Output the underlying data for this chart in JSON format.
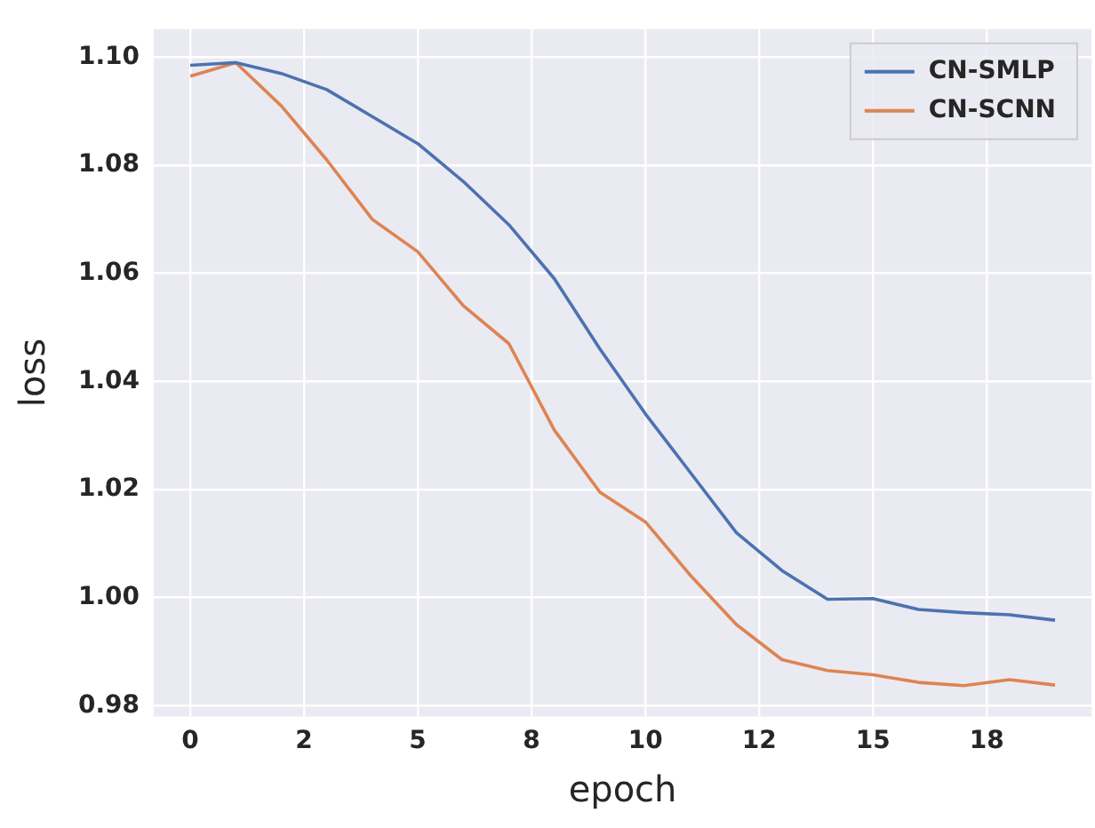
{
  "chart_data": {
    "type": "line",
    "xlabel": "epoch",
    "ylabel": "loss",
    "x": [
      0,
      1,
      2,
      3,
      4,
      5,
      6,
      7,
      8,
      9,
      10,
      11,
      12,
      13,
      14,
      15,
      16,
      17,
      18,
      19
    ],
    "series": [
      {
        "name": "CN-SMLP",
        "color": "#4c72b0",
        "values": [
          1.0985,
          1.099,
          1.097,
          1.094,
          1.089,
          1.084,
          1.077,
          1.069,
          1.059,
          1.046,
          1.034,
          1.023,
          1.012,
          1.005,
          0.9997,
          0.9998,
          0.9978,
          0.9972,
          0.9968,
          0.9958
        ]
      },
      {
        "name": "CN-SCNN",
        "color": "#dd8452",
        "values": [
          1.0965,
          1.099,
          1.091,
          1.081,
          1.07,
          1.064,
          1.054,
          1.047,
          1.031,
          1.0195,
          1.014,
          1.004,
          0.995,
          0.9885,
          0.9865,
          0.9857,
          0.9843,
          0.9837,
          0.9848,
          0.9838
        ]
      }
    ],
    "xlim": [
      -0.8,
      19.8
    ],
    "xticks": [
      0,
      {
        "value": 2.5,
        "label": "2"
      },
      5,
      {
        "value": 7.5,
        "label": "8"
      },
      10,
      {
        "value": 12.5,
        "label": "12"
      },
      15,
      {
        "value": 17.5,
        "label": "18"
      }
    ],
    "ylim": [
      0.978,
      1.1052
    ],
    "yticks": [
      {
        "value": 0.98,
        "label": "0.98"
      },
      {
        "value": 1.0,
        "label": "1.00"
      },
      {
        "value": 1.02,
        "label": "1.02"
      },
      {
        "value": 1.04,
        "label": "1.04"
      },
      {
        "value": 1.06,
        "label": "1.06"
      },
      {
        "value": 1.08,
        "label": "1.08"
      },
      {
        "value": 1.1,
        "label": "1.10"
      }
    ],
    "grid": true,
    "legend": "top right",
    "marker": "none",
    "line_style": "solid"
  }
}
